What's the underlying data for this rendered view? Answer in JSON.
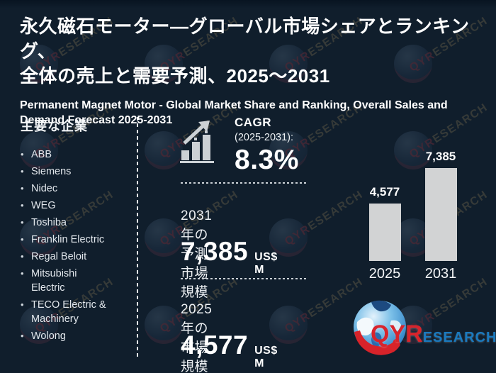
{
  "header": {
    "title_jp": "永久磁石モーター—グローバル市場シェアとランキング、\n全体の売上と需要予測、2025～2031",
    "subtitle_en": "Permanent Magnet Motor - Global Market Share and Ranking, Overall Sales and\nDemand Forecast 2025-2031"
  },
  "sidebar": {
    "heading": "主要な企業",
    "companies": [
      "ABB",
      "Siemens",
      "Nidec",
      "WEG",
      "Toshiba",
      "Franklin Electric",
      "Regal Beloit",
      "Mitsubishi\nElectric",
      "TECO Electric &\nMachinery",
      "Wolong"
    ]
  },
  "stats": {
    "cagr": {
      "label": "CAGR",
      "period": "(2025-2031):",
      "value": "8.3%"
    },
    "forecast": {
      "label": "2031年の予測市場規模",
      "value": "7,385",
      "unit": "US$ M"
    },
    "base": {
      "label": "2025年の市場規模",
      "value": "4,577",
      "unit": "US$ M"
    }
  },
  "chart_data": {
    "type": "bar",
    "categories": [
      "2025",
      "2031"
    ],
    "values": [
      4577,
      7385
    ],
    "value_labels": [
      "4,577",
      "7,385"
    ],
    "title": "",
    "xlabel": "",
    "ylabel": "US$ M",
    "ylim": [
      0,
      7385
    ],
    "grid": false,
    "legend": false,
    "bar_color": "#d2d3d4"
  },
  "watermark": {
    "part_red": "QYR",
    "part_gold": "ESEARCH"
  },
  "logo": {
    "part1": "QYR",
    "part2": "ESEARCH",
    "color_red": "#d8242c",
    "color_blue": "#1a7abf"
  },
  "colors": {
    "background": "#101e2c",
    "text": "#ffffff",
    "bar": "#d2d3d4",
    "dash": "#ccd2d7"
  }
}
